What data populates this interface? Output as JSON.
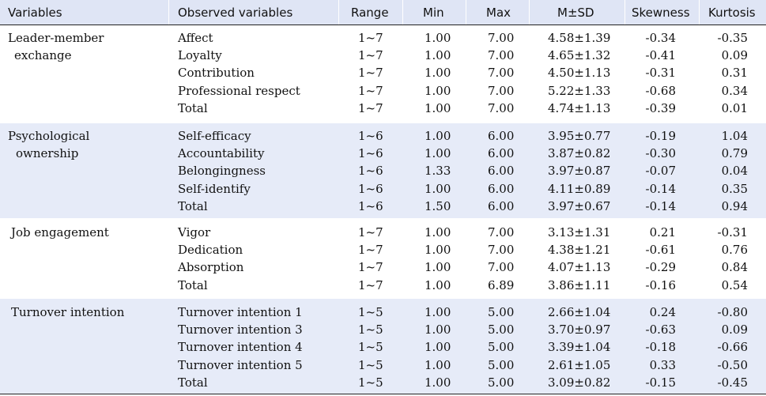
{
  "headers": {
    "variables": "Variables",
    "observed": "Observed variables",
    "range": "Range",
    "min": "Min",
    "max": "Max",
    "msd": "M±SD",
    "skewness": "Skewness",
    "kurtosis": "Kurtosis"
  },
  "groups": [
    {
      "label1": "Leader-member",
      "label2": "exchange",
      "rows": [
        {
          "obs": "Affect",
          "range": "1~7",
          "min": "1.00",
          "max": "7.00",
          "msd": "4.58±1.39",
          "skew": "-0.34",
          "kurt": "-0.35"
        },
        {
          "obs": "Loyalty",
          "range": "1~7",
          "min": "1.00",
          "max": "7.00",
          "msd": "4.65±1.32",
          "skew": "-0.41",
          "kurt": "0.09"
        },
        {
          "obs": "Contribution",
          "range": "1~7",
          "min": "1.00",
          "max": "7.00",
          "msd": "4.50±1.13",
          "skew": "-0.31",
          "kurt": "0.31"
        },
        {
          "obs": "Professional respect",
          "range": "1~7",
          "min": "1.00",
          "max": "7.00",
          "msd": "5.22±1.33",
          "skew": "-0.68",
          "kurt": "0.34"
        },
        {
          "obs": "Total",
          "range": "1~7",
          "min": "1.00",
          "max": "7.00",
          "msd": "4.74±1.13",
          "skew": "-0.39",
          "kurt": "0.01"
        }
      ]
    },
    {
      "label1": "Psychological",
      "label2": "ownership",
      "rows": [
        {
          "obs": "Self-efficacy",
          "range": "1~6",
          "min": "1.00",
          "max": "6.00",
          "msd": "3.95±0.77",
          "skew": "-0.19",
          "kurt": "1.04"
        },
        {
          "obs": "Accountability",
          "range": "1~6",
          "min": "1.00",
          "max": "6.00",
          "msd": "3.87±0.82",
          "skew": "-0.30",
          "kurt": "0.79"
        },
        {
          "obs": "Belongingness",
          "range": "1~6",
          "min": "1.33",
          "max": "6.00",
          "msd": "3.97±0.87",
          "skew": "-0.07",
          "kurt": "0.04"
        },
        {
          "obs": "Self-identify",
          "range": "1~6",
          "min": "1.00",
          "max": "6.00",
          "msd": "4.11±0.89",
          "skew": "-0.14",
          "kurt": "0.35"
        },
        {
          "obs": "Total",
          "range": "1~6",
          "min": "1.50",
          "max": "6.00",
          "msd": "3.97±0.67",
          "skew": "-0.14",
          "kurt": "0.94"
        }
      ]
    },
    {
      "label1": "Job engagement",
      "label2": "",
      "rows": [
        {
          "obs": "Vigor",
          "range": "1~7",
          "min": "1.00",
          "max": "7.00",
          "msd": "3.13±1.31",
          "skew": "0.21",
          "kurt": "-0.31"
        },
        {
          "obs": "Dedication",
          "range": "1~7",
          "min": "1.00",
          "max": "7.00",
          "msd": "4.38±1.21",
          "skew": "-0.61",
          "kurt": "0.76"
        },
        {
          "obs": "Absorption",
          "range": "1~7",
          "min": "1.00",
          "max": "7.00",
          "msd": "4.07±1.13",
          "skew": "-0.29",
          "kurt": "0.84"
        },
        {
          "obs": "Total",
          "range": "1~7",
          "min": "1.00",
          "max": "6.89",
          "msd": "3.86±1.11",
          "skew": "-0.16",
          "kurt": "0.54"
        }
      ]
    },
    {
      "label1": "Turnover intention",
      "label2": "",
      "rows": [
        {
          "obs": "Turnover intention 1",
          "range": "1~5",
          "min": "1.00",
          "max": "5.00",
          "msd": "2.66±1.04",
          "skew": "0.24",
          "kurt": "-0.80"
        },
        {
          "obs": "Turnover intention 3",
          "range": "1~5",
          "min": "1.00",
          "max": "5.00",
          "msd": "3.70±0.97",
          "skew": "-0.63",
          "kurt": "0.09"
        },
        {
          "obs": "Turnover intention 4",
          "range": "1~5",
          "min": "1.00",
          "max": "5.00",
          "msd": "3.39±1.04",
          "skew": "-0.18",
          "kurt": "-0.66"
        },
        {
          "obs": "Turnover intention 5",
          "range": "1~5",
          "min": "1.00",
          "max": "5.00",
          "msd": "2.61±1.05",
          "skew": "0.33",
          "kurt": "-0.50"
        },
        {
          "obs": "Total",
          "range": "1~5",
          "min": "1.00",
          "max": "5.00",
          "msd": "3.09±0.82",
          "skew": "-0.15",
          "kurt": "-0.45"
        }
      ]
    }
  ]
}
